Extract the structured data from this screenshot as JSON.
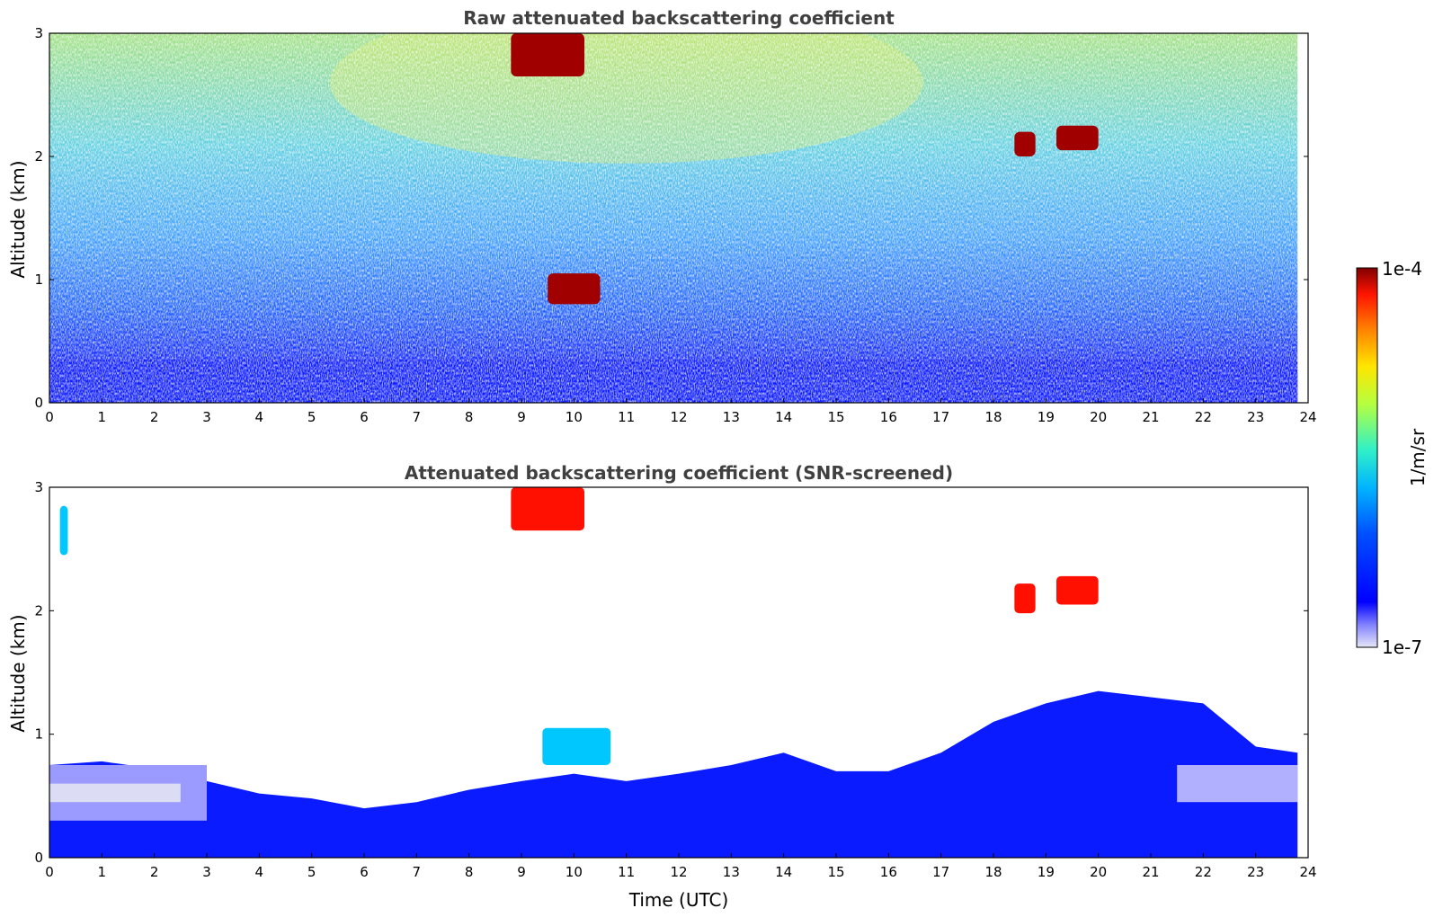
{
  "chart_data": [
    {
      "type": "heatmap",
      "title": "Raw attenuated backscattering coefficient",
      "xlabel": "",
      "ylabel": "Altitude (km)",
      "xlim": [
        0,
        24
      ],
      "ylim": [
        0,
        3
      ],
      "x_ticks": [
        "0",
        "1",
        "2",
        "3",
        "4",
        "5",
        "6",
        "7",
        "8",
        "9",
        "10",
        "11",
        "12",
        "13",
        "14",
        "15",
        "16",
        "17",
        "18",
        "19",
        "20",
        "21",
        "22",
        "23",
        "24"
      ],
      "y_ticks": [
        "0",
        "1",
        "2",
        "3"
      ],
      "data_time_end": 23.8,
      "features": [
        {
          "kind": "noise-field",
          "description_level": "high noise increasing with altitude"
        },
        {
          "kind": "boundary-layer",
          "time": [
            0,
            23.8
          ],
          "alt_top": 0.35
        },
        {
          "kind": "cloud",
          "time": [
            9.5,
            10.5
          ],
          "alt": [
            0.8,
            1.05
          ]
        },
        {
          "kind": "cloud",
          "time": [
            18.4,
            18.8
          ],
          "alt": [
            2.0,
            2.2
          ]
        },
        {
          "kind": "cloud",
          "time": [
            19.2,
            20.0
          ],
          "alt": [
            2.05,
            2.25
          ]
        },
        {
          "kind": "cloud",
          "time": [
            8.8,
            10.2
          ],
          "alt": [
            2.65,
            3.0
          ]
        }
      ]
    },
    {
      "type": "heatmap",
      "title": "Attenuated backscattering coefficient (SNR-screened)",
      "xlabel": "Time (UTC)",
      "ylabel": "Altitude (km)",
      "xlim": [
        0,
        24
      ],
      "ylim": [
        0,
        3
      ],
      "x_ticks": [
        "0",
        "1",
        "2",
        "3",
        "4",
        "5",
        "6",
        "7",
        "8",
        "9",
        "10",
        "11",
        "12",
        "13",
        "14",
        "15",
        "16",
        "17",
        "18",
        "19",
        "20",
        "21",
        "22",
        "23",
        "24"
      ],
      "y_ticks": [
        "0",
        "1",
        "2",
        "3"
      ],
      "data_time_end": 23.8,
      "boundary_layer_top_km": [
        [
          0,
          0.75
        ],
        [
          1,
          0.78
        ],
        [
          2,
          0.72
        ],
        [
          3,
          0.62
        ],
        [
          4,
          0.52
        ],
        [
          5,
          0.48
        ],
        [
          6,
          0.4
        ],
        [
          7,
          0.45
        ],
        [
          8,
          0.55
        ],
        [
          9,
          0.62
        ],
        [
          10,
          0.68
        ],
        [
          11,
          0.62
        ],
        [
          12,
          0.68
        ],
        [
          13,
          0.75
        ],
        [
          14,
          0.85
        ],
        [
          15,
          0.7
        ],
        [
          16,
          0.7
        ],
        [
          17,
          0.85
        ],
        [
          18,
          1.1
        ],
        [
          19,
          1.25
        ],
        [
          20,
          1.35
        ],
        [
          21,
          1.3
        ],
        [
          22,
          1.25
        ],
        [
          23,
          0.9
        ],
        [
          23.8,
          0.85
        ]
      ],
      "clouds": [
        {
          "time": [
            0.2,
            0.35
          ],
          "alt": [
            2.45,
            2.85
          ],
          "color_level": 0.42
        },
        {
          "time": [
            9.4,
            10.7
          ],
          "alt": [
            0.75,
            1.05
          ],
          "color_level": 0.4
        },
        {
          "time": [
            18.4,
            18.8
          ],
          "alt": [
            1.98,
            2.22
          ],
          "color_level": 0.9
        },
        {
          "time": [
            19.2,
            20.0
          ],
          "alt": [
            2.05,
            2.28
          ],
          "color_level": 0.9
        },
        {
          "time": [
            8.8,
            10.2
          ],
          "alt": [
            2.65,
            3.0
          ],
          "color_level": 0.85
        }
      ]
    }
  ],
  "colorbar": {
    "label": "1/m/sr",
    "max_label": "1e-4",
    "min_label": "1e-7",
    "scale": "log",
    "colormap": "jet-like",
    "stops": [
      "#e6e6f7",
      "#6b6bff",
      "#0000ff",
      "#0060ff",
      "#00c8ff",
      "#40f0c0",
      "#c8ff40",
      "#ffe000",
      "#ff8000",
      "#ff1000",
      "#800000"
    ]
  }
}
